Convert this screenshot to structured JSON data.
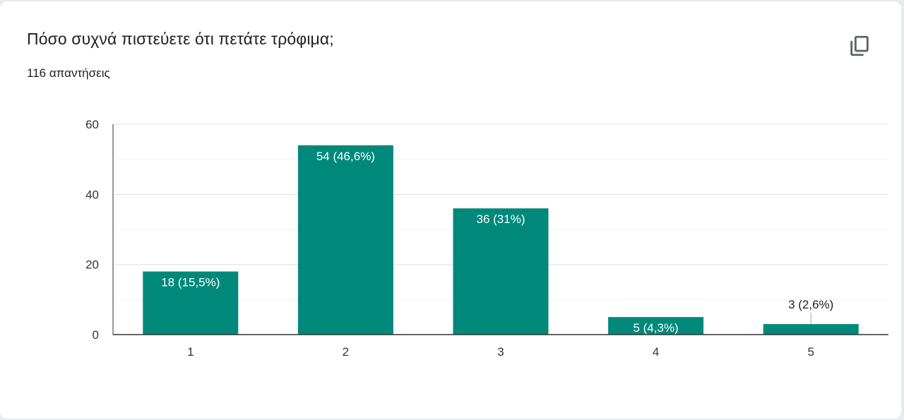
{
  "question": {
    "title": "Πόσο συχνά πιστεύετε ότι πετάτε τρόφιμα;",
    "responses": "116 απαντήσεις"
  },
  "actions": {
    "copy_icon": "copy-icon"
  },
  "colors": {
    "bar": "#00897b",
    "grid": "#e0e0e0",
    "axis": "#333333",
    "label_inside": "#ffffff",
    "label_outside": "#202124"
  },
  "chart_data": {
    "type": "bar",
    "title": "",
    "xlabel": "",
    "ylabel": "",
    "categories": [
      "1",
      "2",
      "3",
      "4",
      "5"
    ],
    "values": [
      18,
      54,
      36,
      5,
      3
    ],
    "data_labels": [
      "18 (15,5%)",
      "54 (46,6%)",
      "36 (31%)",
      "5 (4,3%)",
      "3 (2,6%)"
    ],
    "ylim": [
      0,
      60
    ],
    "yticks": [
      0,
      20,
      40,
      60
    ],
    "grid": true,
    "legend": "none"
  }
}
